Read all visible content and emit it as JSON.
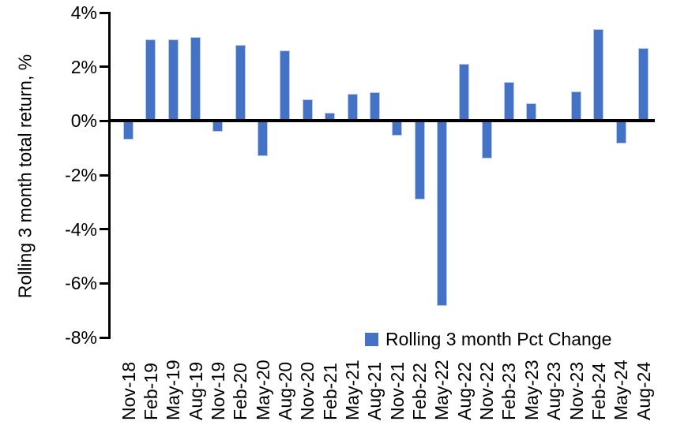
{
  "chart_data": {
    "type": "bar",
    "title": "",
    "xlabel": "",
    "ylabel": "Rolling 3 month total return, %",
    "categories": [
      "Nov-18",
      "Feb-19",
      "May-19",
      "Aug-19",
      "Nov-19",
      "Feb-20",
      "May-20",
      "Aug-20",
      "Nov-20",
      "Feb-21",
      "May-21",
      "Aug-21",
      "Nov-21",
      "Feb-22",
      "May-22",
      "Aug-22",
      "Nov-22",
      "Feb-23",
      "May-23",
      "Aug-23",
      "Nov-23",
      "Feb-24",
      "May-24",
      "Aug-24"
    ],
    "values": [
      -0.7,
      3.0,
      3.0,
      3.1,
      -0.4,
      2.8,
      -1.3,
      2.6,
      0.8,
      0.3,
      1.0,
      1.05,
      -0.55,
      -2.9,
      -6.85,
      2.1,
      -1.4,
      1.45,
      0.65,
      0.0,
      1.1,
      3.4,
      -0.85,
      2.7
    ],
    "ylim": [
      -8,
      4
    ],
    "yticks": [
      4,
      2,
      0,
      -2,
      -4,
      -6,
      -8
    ],
    "ytick_labels": [
      "4%",
      "2%",
      "0%",
      "-2%",
      "-4%",
      "-6%",
      "-8%"
    ],
    "grid": false,
    "legend": {
      "label": "Rolling 3 month Pct Change",
      "position": "bottom-center-inside"
    },
    "colors": {
      "bar": "#4472C4",
      "bar_edge": "#b9c9ea",
      "axis": "#000000",
      "background": "#ffffff"
    }
  }
}
